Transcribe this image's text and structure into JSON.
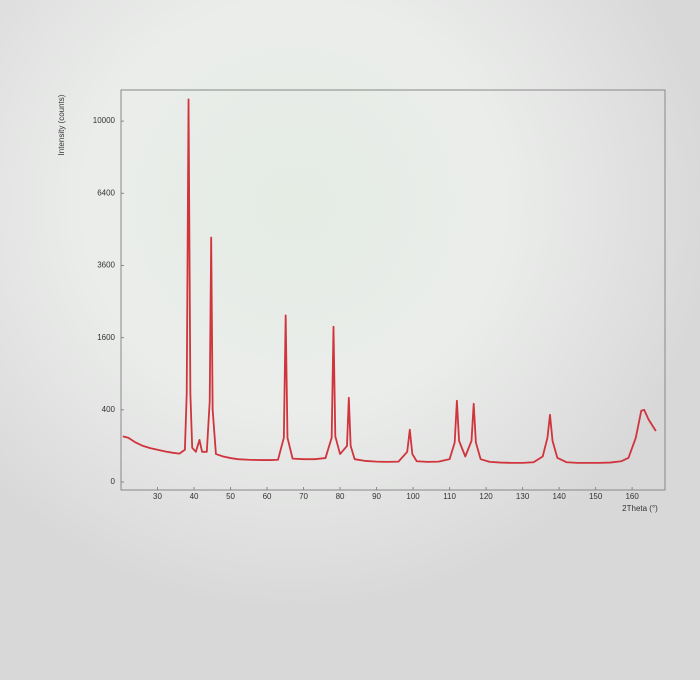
{
  "chart_data": {
    "type": "line",
    "y_label": "Intensity (counts)",
    "x_label": "2Theta (°)",
    "y_scale": "sqrt",
    "xlim": [
      20,
      169
    ],
    "ylim": [
      0,
      11800
    ],
    "xticks": [
      30,
      40,
      50,
      60,
      70,
      80,
      90,
      100,
      110,
      120,
      130,
      140,
      150,
      160
    ],
    "yticks": [
      0,
      400,
      1600,
      3600,
      6400,
      10000
    ],
    "series": [
      {
        "color": "#d0343c",
        "x": [
          20.5,
          22,
          24,
          26,
          28,
          30,
          32,
          34,
          36,
          37.5,
          38.0,
          38.5,
          39.0,
          39.5,
          40.5,
          41.5,
          42.2,
          43.5,
          44.3,
          44.7,
          45.1,
          46,
          48,
          50,
          52,
          55,
          58,
          61,
          63,
          64.6,
          65.1,
          65.6,
          67,
          70,
          73,
          76,
          77.7,
          78.2,
          78.7,
          80,
          81.9,
          82.4,
          82.9,
          84,
          87,
          90,
          93,
          96,
          98.4,
          99.1,
          99.8,
          101,
          104,
          107,
          110,
          111.4,
          112.0,
          112.6,
          114.3,
          116.0,
          116.6,
          117.2,
          118.5,
          121,
          124,
          127,
          130,
          133,
          135.5,
          136.8,
          137.5,
          138.2,
          139.5,
          142,
          145,
          148,
          151,
          154,
          157,
          159,
          161,
          162.5,
          163.3,
          164.5,
          166.5
        ],
        "values": [
          160,
          150,
          120,
          100,
          88,
          80,
          72,
          66,
          62,
          80,
          600,
          11240,
          600,
          90,
          70,
          136,
          70,
          70,
          500,
          4590,
          400,
          60,
          50,
          44,
          40,
          38,
          37,
          37,
          38,
          150,
          2130,
          150,
          42,
          40,
          40,
          44,
          150,
          1850,
          160,
          60,
          100,
          545,
          100,
          40,
          34,
          32,
          31,
          32,
          70,
          210,
          60,
          33,
          31,
          32,
          40,
          120,
          506,
          130,
          50,
          130,
          470,
          120,
          40,
          31,
          29,
          28,
          28,
          30,
          50,
          150,
          347,
          130,
          45,
          30,
          28,
          28,
          28,
          29,
          33,
          45,
          150,
          390,
          400,
          300,
          200
        ]
      }
    ]
  }
}
